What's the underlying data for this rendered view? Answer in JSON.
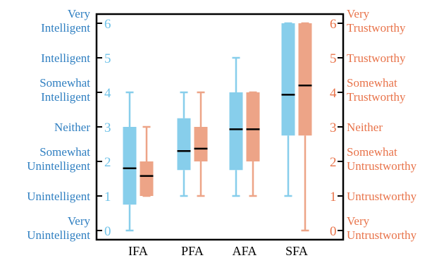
{
  "chart_data": {
    "type": "box",
    "categories": [
      "IFA",
      "PFA",
      "AFA",
      "SFA"
    ],
    "ylim": [
      0,
      6
    ],
    "grid": false,
    "colors": {
      "left": "#2F7FC1",
      "left_ticks": "#6EC2E8",
      "right": "#E8734A",
      "right_ticks": "#E8734A",
      "median": "#000000"
    },
    "left_axis": {
      "ticks": [
        0,
        1,
        2,
        3,
        4,
        5,
        6
      ],
      "labels": [
        [
          "Very",
          "Unintelligent"
        ],
        [
          "Unintelligent"
        ],
        [
          "Somewhat",
          "Unintelligent"
        ],
        [
          "Neither"
        ],
        [
          "Somewhat",
          "Intelligent"
        ],
        [
          "Intelligent"
        ],
        [
          "Very",
          "Intelligent"
        ]
      ]
    },
    "right_axis": {
      "ticks": [
        0,
        1,
        2,
        3,
        4,
        5,
        6
      ],
      "labels": [
        [
          "Very",
          "Untrustworthy"
        ],
        [
          "Untrustworthy"
        ],
        [
          "Somewhat",
          "Untrustworthy"
        ],
        [
          "Neither"
        ],
        [
          "Somewhat",
          "Trustworthy"
        ],
        [
          "Trustworthy"
        ],
        [
          "Very",
          "Trustworthy"
        ]
      ]
    },
    "series": [
      {
        "color": "#87CEEB",
        "boxes": [
          {
            "min": 0.0,
            "q1": 0.75,
            "median": 1.8,
            "q3": 3.0,
            "max": 4.0
          },
          {
            "min": 1.0,
            "q1": 1.75,
            "median": 2.3,
            "q3": 3.25,
            "max": 4.0
          },
          {
            "min": 1.0,
            "q1": 1.75,
            "median": 2.93,
            "q3": 4.0,
            "max": 5.0
          },
          {
            "min": 1.0,
            "q1": 2.75,
            "median": 3.93,
            "q3": 6.0,
            "max": 6.0
          }
        ]
      },
      {
        "color": "#EDA487",
        "boxes": [
          {
            "min": 1.0,
            "q1": 1.0,
            "median": 1.58,
            "q3": 2.0,
            "max": 3.0
          },
          {
            "min": 1.0,
            "q1": 2.0,
            "median": 2.37,
            "q3": 3.0,
            "max": 4.0
          },
          {
            "min": 1.0,
            "q1": 2.0,
            "median": 2.93,
            "q3": 4.0,
            "max": 4.0
          },
          {
            "min": 0.0,
            "q1": 2.75,
            "median": 4.2,
            "q3": 6.0,
            "max": 6.0
          }
        ]
      }
    ]
  }
}
